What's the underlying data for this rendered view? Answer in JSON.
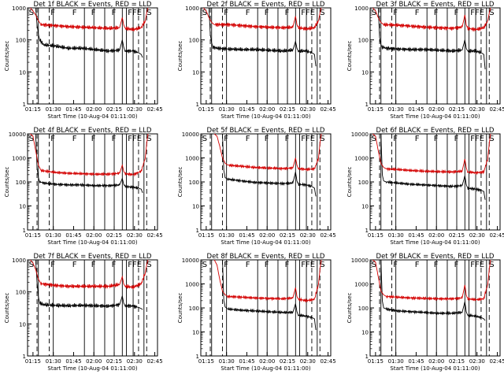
{
  "colors": {
    "events": "#000000",
    "lld": "#d40000",
    "axis": "#000000"
  },
  "chart_data": [
    {
      "type": "line",
      "title": "Det 1f BLACK = Events, RED = LLD",
      "xlabel": "Start Time (10-Aug-04 01:11:00)",
      "ylabel": "Counts/sec",
      "xticks": [
        "01:15",
        "01:30",
        "01:45",
        "02:00",
        "02:15",
        "02:30",
        "02:45"
      ],
      "yticks": [
        "1",
        "10",
        "100",
        "1000"
      ],
      "ylim": [
        1,
        1000
      ],
      "ylog": true,
      "xlim_min": [
        0,
        96
      ],
      "markers": [
        "S",
        "F",
        "F",
        "F",
        "F",
        "FFE",
        "S"
      ],
      "series": [
        {
          "x": [
            6,
            7,
            8,
            9,
            12,
            20,
            30,
            40,
            50,
            60,
            68,
            70,
            71,
            72,
            78,
            82,
            84,
            85
          ],
          "y": [
            1000,
            300,
            150,
            100,
            70,
            65,
            55,
            55,
            50,
            45,
            48,
            100,
            60,
            45,
            45,
            40,
            35,
            28
          ]
        },
        {
          "x": [
            2,
            4,
            6,
            8,
            10,
            20,
            30,
            40,
            50,
            60,
            68,
            70,
            71,
            72,
            78,
            84,
            87,
            88,
            89
          ],
          "y": [
            1000,
            800,
            600,
            400,
            300,
            280,
            260,
            250,
            240,
            230,
            240,
            500,
            300,
            230,
            210,
            240,
            400,
            700,
            1000
          ]
        }
      ]
    },
    {
      "type": "line",
      "title": "Det 2f BLACK = Events, RED = LLD",
      "xlabel": "Start Time (10-Aug-04 01:11:00)",
      "ylabel": "Counts/sec",
      "xticks": [
        "01:15",
        "01:30",
        "01:45",
        "02:00",
        "02:15",
        "02:30",
        "02:45"
      ],
      "yticks": [
        "1",
        "10",
        "100",
        "1000"
      ],
      "ylim": [
        1,
        1000
      ],
      "ylog": true,
      "xlim_min": [
        0,
        96
      ],
      "markers": [
        "S",
        "F",
        "F",
        "F",
        "F",
        "FFE",
        "S"
      ],
      "series": [
        {
          "x": [
            6,
            7,
            8,
            9,
            12,
            20,
            30,
            40,
            50,
            60,
            68,
            70,
            71,
            72,
            78,
            82,
            84,
            85
          ],
          "y": [
            1000,
            150,
            80,
            60,
            55,
            52,
            50,
            50,
            48,
            45,
            48,
            90,
            55,
            45,
            45,
            40,
            35,
            15
          ]
        },
        {
          "x": [
            2,
            4,
            6,
            8,
            10,
            20,
            30,
            40,
            50,
            60,
            68,
            70,
            71,
            72,
            78,
            84,
            87,
            88,
            89
          ],
          "y": [
            1000,
            800,
            500,
            350,
            300,
            300,
            280,
            260,
            250,
            240,
            250,
            550,
            300,
            240,
            220,
            240,
            400,
            700,
            1000
          ]
        }
      ]
    },
    {
      "type": "line",
      "title": "Det 3f BLACK = Events, RED = LLD",
      "xlabel": "Start Time (10-Aug-04 01:11:00)",
      "ylabel": "Counts/sec",
      "xticks": [
        "01:15",
        "01:30",
        "01:45",
        "02:00",
        "02:15",
        "02:30",
        "02:45"
      ],
      "yticks": [
        "1",
        "10",
        "100",
        "1000"
      ],
      "ylim": [
        1,
        1000
      ],
      "ylog": true,
      "xlim_min": [
        0,
        96
      ],
      "markers": [
        "S",
        "F",
        "F",
        "F",
        "F",
        "FFE",
        "S"
      ],
      "series": [
        {
          "x": [
            6,
            7,
            8,
            9,
            12,
            20,
            30,
            40,
            50,
            60,
            68,
            70,
            71,
            72,
            78,
            82,
            84,
            85
          ],
          "y": [
            1000,
            120,
            70,
            60,
            55,
            52,
            50,
            50,
            48,
            45,
            48,
            100,
            55,
            45,
            45,
            40,
            35,
            12
          ]
        },
        {
          "x": [
            2,
            4,
            6,
            8,
            10,
            20,
            30,
            40,
            50,
            60,
            68,
            70,
            71,
            72,
            78,
            84,
            87,
            88,
            89
          ],
          "y": [
            1000,
            800,
            500,
            350,
            300,
            290,
            270,
            250,
            240,
            230,
            250,
            600,
            300,
            230,
            210,
            240,
            400,
            700,
            1000
          ]
        }
      ]
    },
    {
      "type": "line",
      "title": "Det 4f BLACK = Events, RED = LLD",
      "xlabel": "Start Time (10-Aug-04 01:11:00)",
      "ylabel": "Counts/sec",
      "xticks": [
        "01:15",
        "01:30",
        "01:45",
        "02:00",
        "02:15",
        "02:30",
        "02:45"
      ],
      "yticks": [
        "1",
        "10",
        "100",
        "1000",
        "10000"
      ],
      "ylim": [
        1,
        10000
      ],
      "ylog": true,
      "xlim_min": [
        0,
        96
      ],
      "markers": [
        "S",
        "F",
        "F",
        "F",
        "F",
        "FFE",
        "S"
      ],
      "series": [
        {
          "x": [
            6,
            7,
            8,
            9,
            12,
            20,
            30,
            40,
            50,
            60,
            68,
            70,
            71,
            72,
            78,
            82,
            84,
            85
          ],
          "y": [
            10000,
            400,
            150,
            100,
            90,
            80,
            75,
            75,
            70,
            70,
            75,
            140,
            80,
            65,
            60,
            55,
            50,
            35
          ]
        },
        {
          "x": [
            2,
            4,
            6,
            8,
            10,
            20,
            30,
            40,
            50,
            60,
            68,
            70,
            71,
            72,
            78,
            84,
            87,
            88,
            89
          ],
          "y": [
            10000,
            8000,
            2000,
            500,
            300,
            250,
            230,
            220,
            210,
            210,
            230,
            500,
            280,
            220,
            200,
            280,
            1000,
            4000,
            10000
          ]
        }
      ]
    },
    {
      "type": "line",
      "title": "Det 5f BLACK = Events, RED = LLD",
      "xlabel": "Start Time (10-Aug-04 01:11:00)",
      "ylabel": "Counts/sec",
      "xticks": [
        "01:15",
        "01:30",
        "01:45",
        "02:00",
        "02:15",
        "02:30",
        "02:45"
      ],
      "yticks": [
        "1",
        "10",
        "100",
        "1000",
        "10000"
      ],
      "ylim": [
        1,
        10000
      ],
      "ylog": true,
      "xlim_min": [
        0,
        96
      ],
      "markers": [
        "S",
        "F",
        "F",
        "F",
        "F",
        "FFE",
        "S"
      ],
      "series": [
        {
          "x": [
            16,
            17,
            18,
            20,
            30,
            40,
            50,
            60,
            68,
            70,
            71,
            72,
            78,
            82,
            84,
            85
          ],
          "y": [
            10000,
            300,
            150,
            130,
            110,
            95,
            90,
            85,
            90,
            260,
            110,
            80,
            75,
            65,
            55,
            25
          ]
        },
        {
          "x": [
            10,
            12,
            14,
            16,
            18,
            20,
            30,
            40,
            50,
            60,
            68,
            70,
            71,
            72,
            78,
            84,
            87,
            88,
            89
          ],
          "y": [
            10000,
            8000,
            3000,
            1000,
            600,
            500,
            450,
            400,
            380,
            360,
            380,
            1000,
            500,
            360,
            330,
            350,
            1000,
            4000,
            10000
          ]
        }
      ]
    },
    {
      "type": "line",
      "title": "Det 6f BLACK = Events, RED = LLD",
      "xlabel": "Start Time (10-Aug-04 01:11:00)",
      "ylabel": "Counts/sec",
      "xticks": [
        "01:15",
        "01:30",
        "01:45",
        "02:00",
        "02:15",
        "02:30",
        "02:45"
      ],
      "yticks": [
        "1",
        "10",
        "100",
        "1000",
        "10000"
      ],
      "ylim": [
        1,
        10000
      ],
      "ylog": true,
      "xlim_min": [
        0,
        96
      ],
      "markers": [
        "S",
        "F",
        "F",
        "F",
        "F",
        "FFE",
        "S"
      ],
      "series": [
        {
          "x": [
            8,
            9,
            10,
            12,
            20,
            30,
            40,
            50,
            60,
            68,
            70,
            71,
            72,
            78,
            82,
            84,
            85
          ],
          "y": [
            10000,
            200,
            110,
            100,
            90,
            80,
            75,
            70,
            65,
            70,
            180,
            80,
            55,
            50,
            45,
            40,
            18
          ]
        },
        {
          "x": [
            2,
            4,
            6,
            8,
            10,
            12,
            20,
            30,
            40,
            50,
            60,
            68,
            70,
            71,
            72,
            78,
            84,
            87,
            88,
            89
          ],
          "y": [
            10000,
            8000,
            2000,
            600,
            400,
            350,
            330,
            300,
            280,
            270,
            260,
            280,
            900,
            400,
            260,
            240,
            260,
            1000,
            4000,
            10000
          ]
        }
      ]
    },
    {
      "type": "line",
      "title": "Det 7f BLACK = Events, RED = LLD",
      "xlabel": "Start Time (10-Aug-04 01:11:00)",
      "ylabel": "Counts/sec",
      "xticks": [
        "01:15",
        "01:30",
        "01:45",
        "02:00",
        "02:15",
        "02:30",
        "02:45"
      ],
      "yticks": [
        "1",
        "10",
        "100",
        "1000"
      ],
      "ylim": [
        1,
        1000
      ],
      "ylog": true,
      "xlim_min": [
        0,
        96
      ],
      "markers": [
        "S",
        "F",
        "F",
        "F",
        "F",
        "FFE",
        "S"
      ],
      "series": [
        {
          "x": [
            6,
            7,
            8,
            9,
            12,
            20,
            30,
            40,
            50,
            60,
            68,
            70,
            71,
            72,
            78,
            82,
            84,
            85
          ],
          "y": [
            1000,
            200,
            70,
            45,
            40,
            38,
            37,
            38,
            37,
            36,
            40,
            75,
            45,
            37,
            36,
            33,
            30,
            28
          ]
        },
        {
          "x": [
            2,
            4,
            6,
            8,
            10,
            20,
            30,
            40,
            50,
            60,
            68,
            70,
            71,
            72,
            78,
            84,
            87,
            88,
            89
          ],
          "y": [
            1000,
            800,
            500,
            250,
            180,
            160,
            150,
            150,
            150,
            150,
            170,
            300,
            180,
            150,
            140,
            180,
            400,
            700,
            1000
          ]
        }
      ]
    },
    {
      "type": "line",
      "title": "Det 8f BLACK = Events, RED = LLD",
      "xlabel": "Start Time (10-Aug-04 01:11:00)",
      "ylabel": "Counts/sec",
      "xticks": [
        "01:15",
        "01:30",
        "01:45",
        "02:00",
        "02:15",
        "02:30",
        "02:45"
      ],
      "yticks": [
        "1",
        "10",
        "100",
        "1000",
        "10000"
      ],
      "ylim": [
        1,
        10000
      ],
      "ylog": true,
      "xlim_min": [
        0,
        96
      ],
      "markers": [
        "S",
        "F",
        "F",
        "F",
        "F",
        "FFE",
        "S"
      ],
      "series": [
        {
          "x": [
            16,
            17,
            18,
            20,
            30,
            40,
            50,
            60,
            68,
            70,
            71,
            72,
            78,
            82,
            84,
            85
          ],
          "y": [
            10000,
            200,
            110,
            90,
            80,
            75,
            70,
            65,
            65,
            150,
            70,
            50,
            45,
            40,
            35,
            12
          ]
        },
        {
          "x": [
            10,
            12,
            14,
            16,
            18,
            20,
            30,
            40,
            50,
            60,
            68,
            70,
            71,
            72,
            78,
            84,
            87,
            88,
            89
          ],
          "y": [
            10000,
            6000,
            1500,
            500,
            350,
            300,
            280,
            260,
            250,
            240,
            260,
            700,
            300,
            230,
            200,
            230,
            1000,
            4000,
            10000
          ]
        }
      ]
    },
    {
      "type": "line",
      "title": "Det 9f BLACK = Events, RED = LLD",
      "xlabel": "Start Time (10-Aug-04 01:11:00)",
      "ylabel": "Counts/sec",
      "xticks": [
        "01:15",
        "01:30",
        "01:45",
        "02:00",
        "02:15",
        "02:30",
        "02:45"
      ],
      "yticks": [
        "1",
        "10",
        "100",
        "1000",
        "10000"
      ],
      "ylim": [
        1,
        10000
      ],
      "ylog": true,
      "xlim_min": [
        0,
        96
      ],
      "markers": [
        "S",
        "F",
        "F",
        "F",
        "F",
        "FFE",
        "S"
      ],
      "series": [
        {
          "x": [
            8,
            9,
            10,
            12,
            20,
            30,
            40,
            50,
            60,
            68,
            70,
            71,
            72,
            78,
            82,
            84,
            85
          ],
          "y": [
            10000,
            200,
            100,
            90,
            75,
            70,
            65,
            60,
            60,
            65,
            180,
            70,
            50,
            45,
            40,
            35,
            30
          ]
        },
        {
          "x": [
            2,
            4,
            6,
            8,
            10,
            12,
            20,
            30,
            40,
            50,
            60,
            68,
            70,
            71,
            72,
            78,
            84,
            87,
            88,
            89
          ],
          "y": [
            10000,
            8000,
            2000,
            500,
            350,
            300,
            280,
            260,
            250,
            240,
            240,
            260,
            900,
            350,
            240,
            220,
            240,
            1000,
            4000,
            10000
          ]
        }
      ]
    }
  ]
}
